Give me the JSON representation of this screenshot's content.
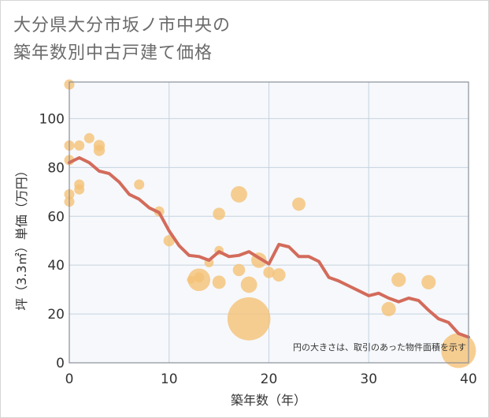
{
  "title_line1": "大分県大分市坂ノ市中央の",
  "title_line2": "築年数別中古戸建て価格",
  "chart_data": {
    "type": "scatter",
    "title": "大分県大分市坂ノ市中央の築年数別中古戸建て価格",
    "xlabel": "築年数（年）",
    "ylabel": "坪（3.3㎡）単価（万円）",
    "xlim": [
      0,
      40
    ],
    "ylim": [
      0,
      115
    ],
    "xticks": [
      0,
      10,
      20,
      30,
      40
    ],
    "yticks": [
      0,
      20,
      40,
      60,
      80,
      100
    ],
    "grid": true,
    "annotation": "円の大きさは、取引のあった物件面積を示す",
    "colors": {
      "bubble": "#f5c277",
      "line": "#d36b5b",
      "plot_bg": "#f6f8fb",
      "grid": "#c6d2e0"
    },
    "points": [
      {
        "x": 0,
        "y": 114,
        "size": 1
      },
      {
        "x": 0,
        "y": 89,
        "size": 1
      },
      {
        "x": 0,
        "y": 83,
        "size": 1
      },
      {
        "x": 0,
        "y": 69,
        "size": 1
      },
      {
        "x": 0,
        "y": 66,
        "size": 1
      },
      {
        "x": 1,
        "y": 89,
        "size": 1
      },
      {
        "x": 1,
        "y": 73,
        "size": 1
      },
      {
        "x": 1,
        "y": 71,
        "size": 1
      },
      {
        "x": 2,
        "y": 92,
        "size": 1
      },
      {
        "x": 3,
        "y": 89,
        "size": 1.1
      },
      {
        "x": 3,
        "y": 87,
        "size": 1.1
      },
      {
        "x": 7,
        "y": 73,
        "size": 1
      },
      {
        "x": 9,
        "y": 62,
        "size": 1
      },
      {
        "x": 10,
        "y": 50,
        "size": 1.1
      },
      {
        "x": 12.2,
        "y": 34,
        "size": 0.8
      },
      {
        "x": 13,
        "y": 34,
        "size": 2.2
      },
      {
        "x": 13,
        "y": 35,
        "size": 1
      },
      {
        "x": 14,
        "y": 41,
        "size": 0.9
      },
      {
        "x": 15,
        "y": 61,
        "size": 1.2
      },
      {
        "x": 15,
        "y": 46,
        "size": 0.9
      },
      {
        "x": 15,
        "y": 33,
        "size": 1.3
      },
      {
        "x": 17,
        "y": 69,
        "size": 1.6
      },
      {
        "x": 17,
        "y": 38,
        "size": 1.2
      },
      {
        "x": 18,
        "y": 32,
        "size": 1.6
      },
      {
        "x": 18,
        "y": 18,
        "size": 4.2
      },
      {
        "x": 19,
        "y": 42,
        "size": 1.5
      },
      {
        "x": 20,
        "y": 37,
        "size": 1.1
      },
      {
        "x": 21,
        "y": 36,
        "size": 1.3
      },
      {
        "x": 23,
        "y": 65,
        "size": 1.3
      },
      {
        "x": 32,
        "y": 22,
        "size": 1.4
      },
      {
        "x": 33,
        "y": 34,
        "size": 1.4
      },
      {
        "x": 36,
        "y": 33,
        "size": 1.4
      },
      {
        "x": 39,
        "y": 5,
        "size": 3.4
      }
    ],
    "trend": {
      "x": [
        0,
        1,
        2,
        3,
        4,
        5,
        6,
        7,
        8,
        9,
        10,
        11,
        12,
        13,
        14,
        15,
        16,
        17,
        18,
        19,
        20,
        21,
        22,
        23,
        24,
        25,
        26,
        27,
        28,
        29,
        30,
        31,
        32,
        33,
        34,
        35,
        36,
        37,
        38,
        39,
        40
      ],
      "y": [
        82,
        84,
        82,
        78.5,
        77.5,
        74,
        69,
        67,
        63.5,
        61.5,
        54,
        48,
        44,
        43.5,
        42,
        45.5,
        43.5,
        44,
        45.5,
        43,
        40.5,
        48.5,
        47.5,
        43.5,
        43.5,
        41.5,
        35,
        33.5,
        31.5,
        29.5,
        27.5,
        28.5,
        26.5,
        25,
        26.5,
        25.5,
        21.5,
        18,
        16.5,
        12,
        10.5
      ]
    }
  }
}
